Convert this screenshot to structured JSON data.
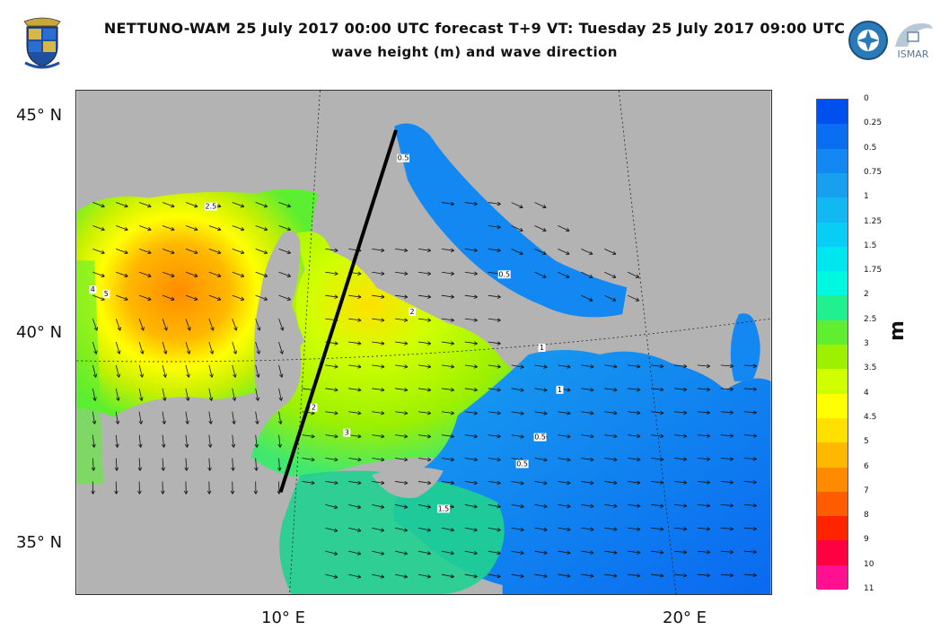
{
  "header": {
    "title": "NETTUNO-WAM 25 July 2017 00:00 UTC forecast T+9 VT: Tuesday 25 July 2017 09:00 UTC",
    "subtitle": "wave height (m) and wave direction"
  },
  "logos": [
    "crest-logo",
    "globe-logo",
    "ismar-logo"
  ],
  "logo_text": {
    "right": "ISMAR"
  },
  "map": {
    "lat_labels": [
      "45° N",
      "40° N",
      "35° N"
    ],
    "lon_labels": [
      "10° E",
      "20° E"
    ],
    "colors": {
      "land": "#b3b3b3",
      "border": "#ffffff",
      "section_line": "#000000"
    }
  },
  "colorbar": {
    "unit": "m",
    "levels": [
      "0",
      "0.25",
      "0.5",
      "0.75",
      "1",
      "1.25",
      "1.5",
      "1.75",
      "2",
      "2.5",
      "3",
      "3.5",
      "4",
      "4.5",
      "5",
      "6",
      "7",
      "8",
      "9",
      "10",
      "11"
    ],
    "colors": [
      "#0050f0",
      "#0a6ef2",
      "#1488f2",
      "#189ff0",
      "#12b8f4",
      "#08cdf4",
      "#00e6f0",
      "#00f8e0",
      "#20f090",
      "#60ee30",
      "#9cf000",
      "#d0ff00",
      "#ffff00",
      "#ffe000",
      "#ffb800",
      "#ff8c00",
      "#ff5c00",
      "#ff2400",
      "#ff0040",
      "#ff1090"
    ]
  },
  "contour_labels": [
    "0.5",
    "1",
    "1.5",
    "2",
    "2.5",
    "3",
    "4",
    "5"
  ]
}
